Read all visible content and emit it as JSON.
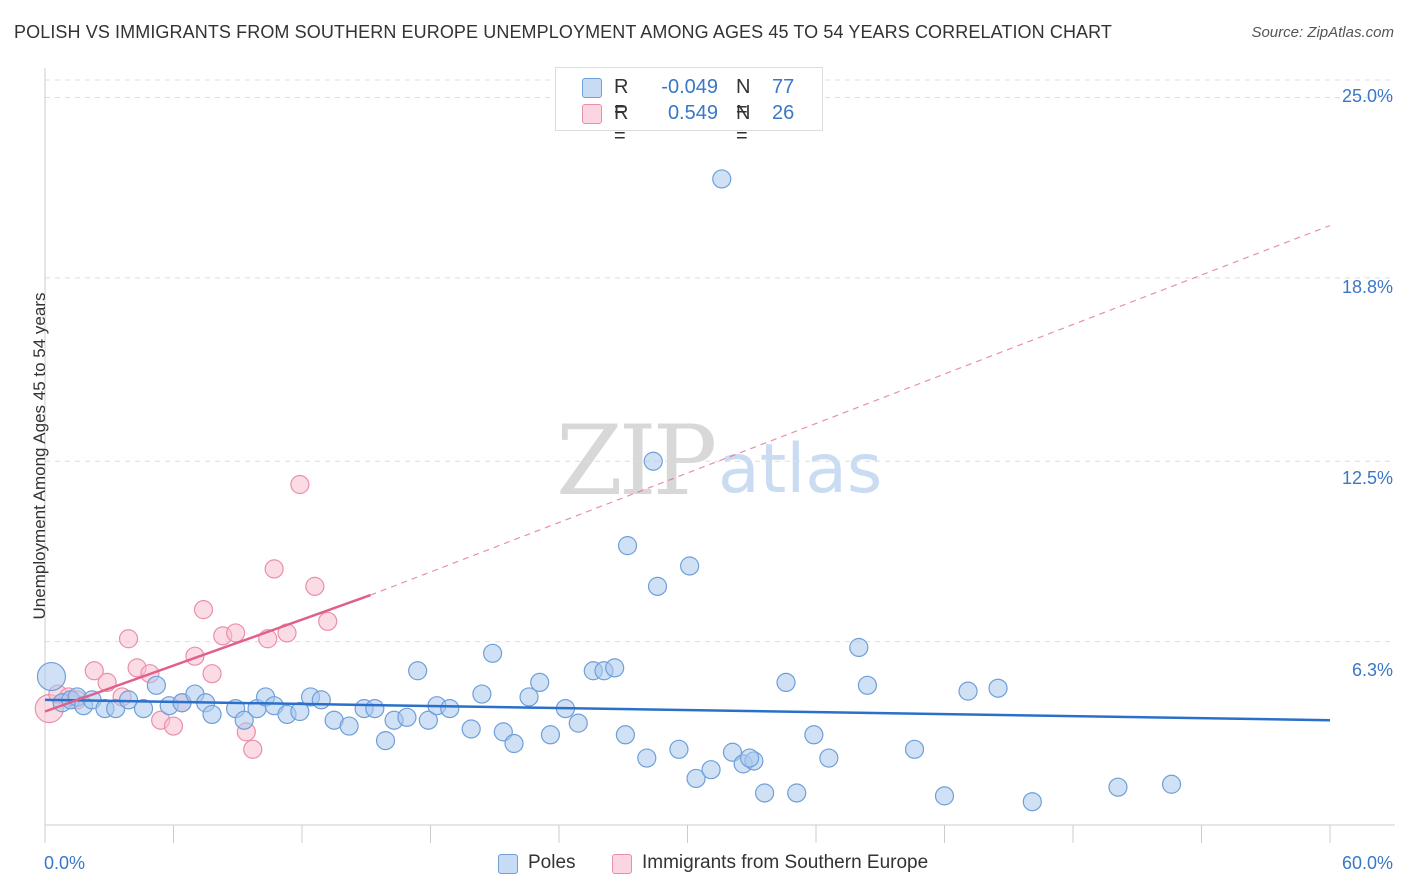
{
  "title": "POLISH VS IMMIGRANTS FROM SOUTHERN EUROPE UNEMPLOYMENT AMONG AGES 45 TO 54 YEARS CORRELATION CHART",
  "source": "Source: ZipAtlas.com",
  "watermark": {
    "zip": "ZIP",
    "atlas": "atlas"
  },
  "legend": {
    "row1": {
      "r_label": "R =",
      "r_value": "-0.049",
      "n_label": "N =",
      "n_value": "77"
    },
    "row2": {
      "r_label": "R =",
      "r_value": "0.549",
      "n_label": "N =",
      "n_value": "26"
    }
  },
  "bottom_legend": {
    "series1": "Poles",
    "series2": "Immigrants from Southern Europe"
  },
  "colors": {
    "blue_fill": "#a9c8ef",
    "blue_stroke": "#6f9fd8",
    "blue_line": "#2a6fc9",
    "pink_fill": "#f7c0cf",
    "pink_stroke": "#ea8fab",
    "pink_line": "#e0608a"
  },
  "chart_data": {
    "type": "scatter",
    "xlabel": "",
    "ylabel": "Unemployment Among Ages 45 to 54 years",
    "xlim": [
      0,
      60
    ],
    "ylim": [
      0,
      25.6
    ],
    "x_tick_labels": [
      "0.0%",
      "60.0%"
    ],
    "y_tick_labels": [
      "6.3%",
      "12.5%",
      "18.8%",
      "25.0%"
    ],
    "y_ticks": [
      6.3,
      12.5,
      18.8,
      25.0
    ],
    "series": [
      {
        "name": "Poles",
        "r": -0.049,
        "n": 77,
        "trend": {
          "x": [
            0,
            60
          ],
          "y": [
            4.3,
            3.6
          ]
        },
        "points": [
          [
            0.3,
            5.1,
            14
          ],
          [
            0.8,
            4.2,
            9
          ],
          [
            1.2,
            4.3,
            9
          ],
          [
            1.5,
            4.4,
            9
          ],
          [
            1.8,
            4.1,
            9
          ],
          [
            2.2,
            4.3,
            9
          ],
          [
            2.8,
            4.0,
            9
          ],
          [
            3.3,
            4.0,
            9
          ],
          [
            3.9,
            4.3,
            9
          ],
          [
            4.6,
            4.0,
            9
          ],
          [
            5.2,
            4.8,
            9
          ],
          [
            5.8,
            4.1,
            9
          ],
          [
            6.4,
            4.2,
            9
          ],
          [
            7.0,
            4.5,
            9
          ],
          [
            7.5,
            4.2,
            9
          ],
          [
            7.8,
            3.8,
            9
          ],
          [
            8.9,
            4.0,
            9
          ],
          [
            9.3,
            3.6,
            9
          ],
          [
            9.9,
            4.0,
            9
          ],
          [
            10.3,
            4.4,
            9
          ],
          [
            10.7,
            4.1,
            9
          ],
          [
            11.3,
            3.8,
            9
          ],
          [
            11.9,
            3.9,
            9
          ],
          [
            12.4,
            4.4,
            9
          ],
          [
            12.9,
            4.3,
            9
          ],
          [
            13.5,
            3.6,
            9
          ],
          [
            14.2,
            3.4,
            9
          ],
          [
            14.9,
            4.0,
            9
          ],
          [
            15.4,
            4.0,
            9
          ],
          [
            15.9,
            2.9,
            9
          ],
          [
            16.3,
            3.6,
            9
          ],
          [
            16.9,
            3.7,
            9
          ],
          [
            17.4,
            5.3,
            9
          ],
          [
            17.9,
            3.6,
            9
          ],
          [
            18.3,
            4.1,
            9
          ],
          [
            18.9,
            4.0,
            9
          ],
          [
            19.9,
            3.3,
            9
          ],
          [
            20.4,
            4.5,
            9
          ],
          [
            20.9,
            5.9,
            9
          ],
          [
            21.4,
            3.2,
            9
          ],
          [
            21.9,
            2.8,
            9
          ],
          [
            22.6,
            4.4,
            9
          ],
          [
            23.1,
            4.9,
            9
          ],
          [
            23.6,
            3.1,
            9
          ],
          [
            24.3,
            4.0,
            9
          ],
          [
            24.9,
            3.5,
            9
          ],
          [
            25.6,
            5.3,
            9
          ],
          [
            26.1,
            5.3,
            9
          ],
          [
            26.6,
            5.4,
            9
          ],
          [
            27.1,
            3.1,
            9
          ],
          [
            28.1,
            2.3,
            9
          ],
          [
            28.6,
            8.2,
            9
          ],
          [
            28.4,
            12.5,
            9
          ],
          [
            27.2,
            9.6,
            9
          ],
          [
            29.6,
            2.6,
            9
          ],
          [
            30.1,
            8.9,
            9
          ],
          [
            30.4,
            1.6,
            9
          ],
          [
            31.1,
            1.9,
            9
          ],
          [
            31.6,
            22.2,
            9
          ],
          [
            32.1,
            2.5,
            9
          ],
          [
            32.6,
            2.1,
            9
          ],
          [
            33.1,
            2.2,
            9
          ],
          [
            33.6,
            1.1,
            9
          ],
          [
            32.9,
            2.3,
            9
          ],
          [
            34.6,
            4.9,
            9
          ],
          [
            35.1,
            1.1,
            9
          ],
          [
            35.9,
            3.1,
            9
          ],
          [
            36.6,
            2.3,
            9
          ],
          [
            38.0,
            6.1,
            9
          ],
          [
            38.4,
            4.8,
            9
          ],
          [
            40.6,
            2.6,
            9
          ],
          [
            42.0,
            1.0,
            9
          ],
          [
            43.1,
            4.6,
            9
          ],
          [
            44.5,
            4.7,
            9
          ],
          [
            46.1,
            0.8,
            9
          ],
          [
            50.1,
            1.3,
            9
          ],
          [
            52.6,
            1.4,
            9
          ]
        ]
      },
      {
        "name": "Immigrants from Southern Europe",
        "r": 0.549,
        "n": 26,
        "trend": {
          "x": [
            0,
            15.2
          ],
          "y": [
            3.9,
            7.9
          ]
        },
        "trend_dashed": {
          "x": [
            15.2,
            60
          ],
          "y": [
            7.9,
            20.6
          ]
        },
        "points": [
          [
            0.2,
            4.0,
            14
          ],
          [
            0.6,
            4.5,
            9
          ],
          [
            1.1,
            4.4,
            9
          ],
          [
            1.5,
            4.3,
            9
          ],
          [
            2.3,
            5.3,
            9
          ],
          [
            2.9,
            4.9,
            9
          ],
          [
            3.6,
            4.4,
            9
          ],
          [
            3.9,
            6.4,
            9
          ],
          [
            4.3,
            5.4,
            9
          ],
          [
            4.9,
            5.2,
            9
          ],
          [
            5.4,
            3.6,
            9
          ],
          [
            6.0,
            3.4,
            9
          ],
          [
            6.4,
            4.2,
            9
          ],
          [
            7.0,
            5.8,
            9
          ],
          [
            7.4,
            7.4,
            9
          ],
          [
            7.8,
            5.2,
            9
          ],
          [
            8.3,
            6.5,
            9
          ],
          [
            8.9,
            6.6,
            9
          ],
          [
            9.4,
            3.2,
            9
          ],
          [
            9.7,
            2.6,
            9
          ],
          [
            10.4,
            6.4,
            9
          ],
          [
            10.7,
            8.8,
            9
          ],
          [
            11.3,
            6.6,
            9
          ],
          [
            11.9,
            11.7,
            9
          ],
          [
            12.6,
            8.2,
            9
          ],
          [
            13.2,
            7.0,
            9
          ]
        ]
      }
    ]
  }
}
